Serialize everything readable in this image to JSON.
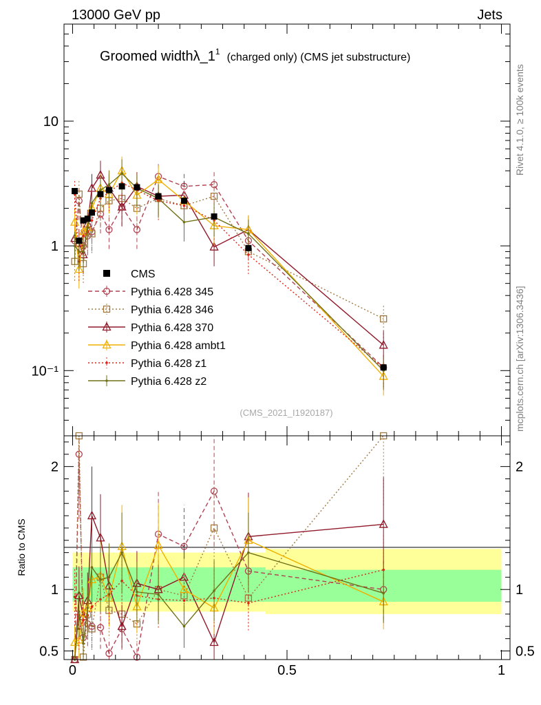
{
  "header": {
    "left": "13000 GeV pp",
    "right": "Jets"
  },
  "title": {
    "main": "Groomed width",
    "symbol": "λ_1",
    "sup": "1",
    "sub": "(charged only) (CMS jet substructure)"
  },
  "side_labels": {
    "rivet": "Rivet 4.1.0, ≥ 100k events",
    "site": "mcplots.cern.ch [arXiv:1306.3436]"
  },
  "analysis_id": "(CMS_2021_I1920187)",
  "ratio_ylabel": "Ratio to CMS",
  "chart_data": {
    "type": "line",
    "main": {
      "yscale": "log",
      "ylim": [
        0.03,
        60
      ],
      "yticks": [
        {
          "v": 0.1,
          "label": "10⁻¹"
        },
        {
          "v": 1,
          "label": "1"
        },
        {
          "v": 10,
          "label": "10"
        }
      ]
    },
    "ratio": {
      "ylim": [
        0.43,
        2.25
      ],
      "yticks": [
        {
          "v": 0.5,
          "label": "0.5"
        },
        {
          "v": 1,
          "label": "1"
        },
        {
          "v": 2,
          "label": "2"
        }
      ],
      "band_green": [
        {
          "x0": 0.0,
          "x1": 0.45,
          "lo": 0.9,
          "hi": 1.18
        },
        {
          "x0": 0.45,
          "x1": 1.0,
          "lo": 0.9,
          "hi": 1.16
        }
      ],
      "band_yellow": [
        {
          "x0": 0.0,
          "x1": 0.45,
          "lo": 0.82,
          "hi": 1.3
        },
        {
          "x0": 0.45,
          "x1": 1.0,
          "lo": 0.8,
          "hi": 1.33
        }
      ]
    },
    "xlim": [
      -0.02,
      1.02
    ],
    "xticks": [
      {
        "v": 0,
        "label": "0"
      },
      {
        "v": 0.5,
        "label": "0.5"
      },
      {
        "v": 1,
        "label": "1"
      }
    ],
    "x": [
      0.005,
      0.015,
      0.025,
      0.035,
      0.045,
      0.065,
      0.085,
      0.115,
      0.15,
      0.2,
      0.26,
      0.33,
      0.41,
      0.725
    ],
    "cms": [
      2.75,
      1.1,
      1.6,
      1.65,
      1.85,
      2.6,
      2.8,
      3.0,
      2.95,
      2.5,
      2.3,
      1.72,
      0.96,
      0.106
    ],
    "series": [
      {
        "name": "Pythia 6.428 345",
        "color": "#b04050",
        "dash": "6,4",
        "marker": "circle",
        "values": [
          1.1,
          2.3,
          1.0,
          1.2,
          1.3,
          1.8,
          1.35,
          2.05,
          1.35,
          3.6,
          3.0,
          3.1,
          1.1,
          0.106
        ],
        "ratio": [
          0.4,
          2.1,
          0.61,
          0.72,
          0.7,
          0.69,
          0.48,
          0.68,
          0.45,
          1.45,
          1.35,
          1.8,
          1.15,
          1.0
        ]
      },
      {
        "name": "Pythia 6.428 346",
        "color": "#a07840",
        "dash": "2,3",
        "marker": "square",
        "values": [
          0.75,
          2.6,
          0.72,
          1.3,
          1.25,
          2.0,
          2.3,
          2.4,
          2.0,
          2.4,
          2.1,
          2.5,
          0.9,
          0.26
        ],
        "ratio": [
          0.27,
          2.36,
          0.45,
          0.8,
          0.68,
          1.1,
          0.83,
          0.8,
          0.72,
          1.0,
          0.95,
          1.5,
          0.93,
          2.25
        ]
      },
      {
        "name": "Pythia 6.428 370",
        "color": "#901828",
        "dash": "",
        "marker": "triangle",
        "values": [
          1.15,
          1.05,
          0.85,
          1.5,
          2.9,
          3.7,
          2.9,
          2.05,
          3.0,
          2.5,
          2.55,
          0.98,
          1.35,
          0.16
        ],
        "ratio": [
          0.34,
          0.95,
          0.78,
          0.91,
          1.6,
          1.42,
          1.03,
          0.7,
          1.05,
          1.0,
          1.1,
          0.57,
          1.43,
          1.53
        ]
      },
      {
        "name": "Pythia 6.428 ambt1",
        "color": "#f0b000",
        "dash": "",
        "marker": "triangle",
        "values": [
          1.55,
          0.65,
          1.3,
          1.4,
          2.0,
          2.9,
          2.6,
          4.0,
          2.55,
          3.4,
          2.3,
          1.45,
          1.35,
          0.09
        ],
        "ratio": [
          0.57,
          0.59,
          0.81,
          0.85,
          1.08,
          1.11,
          0.93,
          1.35,
          0.86,
          1.36,
          1.0,
          0.85,
          1.4,
          0.9
        ]
      },
      {
        "name": "Pythia 6.428 z1",
        "color": "#e02010",
        "dash": "2,3",
        "marker": "dot",
        "values": [
          2.6,
          0.75,
          1.2,
          1.3,
          1.6,
          2.4,
          2.7,
          3.2,
          2.8,
          2.3,
          2.1,
          1.6,
          0.85,
          0.105
        ],
        "ratio": [
          0.94,
          0.68,
          0.75,
          0.79,
          0.86,
          0.92,
          0.96,
          1.07,
          0.95,
          0.92,
          0.91,
          0.93,
          0.89,
          1.16
        ]
      },
      {
        "name": "Pythia 6.428 z2",
        "color": "#707018",
        "dash": "",
        "marker": "dot",
        "values": [
          1.0,
          0.9,
          0.9,
          1.4,
          2.2,
          2.8,
          3.1,
          3.8,
          2.9,
          2.4,
          1.55,
          1.7,
          1.25,
          0.1
        ],
        "ratio": [
          0.36,
          0.82,
          0.56,
          0.85,
          1.18,
          1.08,
          1.1,
          1.3,
          0.98,
          0.96,
          0.7,
          0.99,
          1.3,
          0.97
        ]
      }
    ]
  }
}
